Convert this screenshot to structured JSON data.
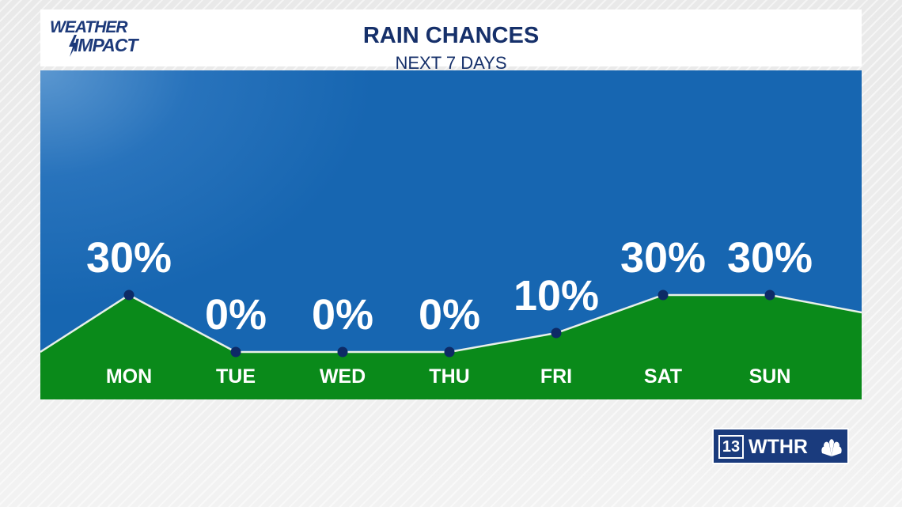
{
  "logo": {
    "line1": "WEATHER",
    "line2": "IMPACT"
  },
  "header": {
    "title": "RAIN CHANCES",
    "subtitle": "NEXT 7 DAYS"
  },
  "brand": {
    "number": "13",
    "name": "WTHR",
    "icon": "peacock-icon"
  },
  "colors": {
    "panel": "#1766b1",
    "fill": "#0a8a1a",
    "line": "#e8f0e8",
    "point": "#0d2a66",
    "label": "#ffffff"
  },
  "chart_data": {
    "type": "area",
    "categories": [
      "MON",
      "TUE",
      "WED",
      "THU",
      "FRI",
      "SAT",
      "SUN"
    ],
    "values": [
      30,
      0,
      0,
      0,
      10,
      30,
      30
    ],
    "value_labels": [
      "30%",
      "0%",
      "0%",
      "0%",
      "10%",
      "30%",
      "30%"
    ],
    "unit": "%",
    "title": "RAIN CHANCES",
    "subtitle": "NEXT 7 DAYS",
    "ylim": [
      0,
      100
    ],
    "grid": false,
    "legend": "none"
  }
}
